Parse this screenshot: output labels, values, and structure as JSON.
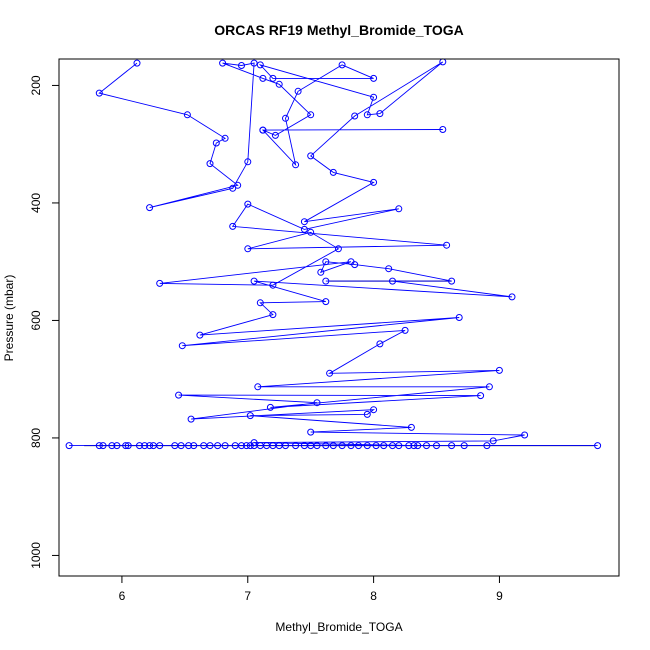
{
  "chart_data": {
    "type": "line",
    "title": "ORCAS RF19 Methyl_Bromide_TOGA",
    "xlabel": "Methyl_Bromide_TOGA",
    "ylabel": "Pressure (mbar)",
    "xlim": [
      5.5,
      9.95
    ],
    "ylim": [
      1035,
      155
    ],
    "y_reversed": true,
    "x_ticks": [
      6,
      7,
      8,
      9
    ],
    "y_ticks": [
      200,
      400,
      600,
      800,
      1000
    ],
    "grid": false,
    "legend": "none",
    "colors": {
      "series": "#0000ff",
      "reference": "#000000"
    },
    "series": [
      {
        "points": [
          [
            6.12,
            162
          ],
          [
            5.82,
            213
          ],
          [
            6.52,
            250
          ],
          [
            6.82,
            290
          ],
          [
            6.75,
            298
          ],
          [
            6.7,
            333
          ],
          [
            6.92,
            370
          ],
          [
            6.22,
            408
          ],
          [
            6.88,
            375
          ],
          [
            7.0,
            330
          ],
          [
            7.05,
            162
          ],
          [
            6.95,
            166
          ],
          [
            6.8,
            162
          ],
          [
            7.12,
            188
          ],
          [
            7.25,
            198
          ],
          [
            7.5,
            250
          ],
          [
            7.22,
            285
          ],
          [
            7.12,
            276
          ],
          [
            8.55,
            275
          ],
          [
            7.12,
            276
          ],
          [
            7.38,
            335
          ],
          [
            7.3,
            256
          ],
          [
            7.4,
            210
          ],
          [
            7.75,
            165
          ],
          [
            8.0,
            188
          ],
          [
            7.2,
            188
          ],
          [
            7.1,
            165
          ],
          [
            8.0,
            220
          ],
          [
            7.95,
            250
          ],
          [
            8.05,
            248
          ],
          [
            8.55,
            160
          ],
          [
            7.85,
            252
          ],
          [
            7.5,
            320
          ],
          [
            7.68,
            348
          ],
          [
            8.0,
            365
          ],
          [
            7.45,
            432
          ],
          [
            8.2,
            410
          ],
          [
            7.45,
            445
          ],
          [
            7.0,
            402
          ],
          [
            6.88,
            440
          ],
          [
            8.58,
            472
          ],
          [
            7.0,
            478
          ],
          [
            7.5,
            450
          ],
          [
            7.72,
            478
          ],
          [
            7.2,
            540
          ],
          [
            6.3,
            537
          ],
          [
            7.82,
            500
          ],
          [
            7.58,
            518
          ],
          [
            7.62,
            500
          ],
          [
            7.85,
            505
          ],
          [
            8.12,
            512
          ],
          [
            8.62,
            533
          ],
          [
            7.62,
            533
          ],
          [
            8.15,
            533
          ],
          [
            9.1,
            560
          ],
          [
            7.05,
            533
          ],
          [
            7.62,
            568
          ],
          [
            7.1,
            570
          ],
          [
            7.2,
            590
          ],
          [
            6.62,
            625
          ],
          [
            8.68,
            595
          ],
          [
            6.48,
            643
          ],
          [
            8.25,
            617
          ],
          [
            8.05,
            640
          ],
          [
            7.65,
            690
          ],
          [
            9.0,
            685
          ],
          [
            7.08,
            713
          ],
          [
            8.92,
            713
          ],
          [
            7.18,
            748
          ],
          [
            8.85,
            728
          ],
          [
            6.45,
            727
          ],
          [
            7.55,
            740
          ],
          [
            6.55,
            768
          ],
          [
            8.0,
            752
          ],
          [
            7.95,
            760
          ],
          [
            7.02,
            762
          ],
          [
            8.3,
            782
          ],
          [
            7.5,
            790
          ],
          [
            9.2,
            795
          ],
          [
            8.95,
            805
          ],
          [
            7.05,
            808
          ],
          [
            8.32,
            813
          ]
        ]
      },
      {
        "points": [
          [
            5.58,
            813
          ],
          [
            5.82,
            813
          ],
          [
            5.85,
            813
          ],
          [
            5.92,
            813
          ],
          [
            5.96,
            813
          ],
          [
            6.03,
            813
          ],
          [
            6.05,
            813
          ],
          [
            6.14,
            813
          ],
          [
            6.18,
            813
          ],
          [
            6.22,
            813
          ],
          [
            6.25,
            813
          ],
          [
            6.3,
            813
          ],
          [
            6.42,
            813
          ],
          [
            6.47,
            813
          ],
          [
            6.53,
            813
          ],
          [
            6.57,
            813
          ],
          [
            6.65,
            813
          ],
          [
            6.7,
            813
          ],
          [
            6.76,
            813
          ],
          [
            6.82,
            813
          ],
          [
            6.9,
            813
          ],
          [
            6.95,
            813
          ],
          [
            6.99,
            813
          ],
          [
            7.02,
            813
          ],
          [
            7.05,
            813
          ],
          [
            7.1,
            813
          ],
          [
            7.15,
            813
          ],
          [
            7.2,
            813
          ],
          [
            7.25,
            813
          ],
          [
            7.3,
            813
          ],
          [
            7.38,
            813
          ],
          [
            7.45,
            813
          ],
          [
            7.5,
            813
          ],
          [
            7.55,
            813
          ],
          [
            7.62,
            813
          ],
          [
            7.68,
            813
          ],
          [
            7.75,
            813
          ],
          [
            7.82,
            813
          ],
          [
            7.88,
            813
          ],
          [
            7.95,
            813
          ],
          [
            8.02,
            813
          ],
          [
            8.08,
            813
          ],
          [
            8.15,
            813
          ],
          [
            8.2,
            813
          ],
          [
            8.28,
            813
          ],
          [
            8.35,
            813
          ],
          [
            8.42,
            813
          ],
          [
            8.5,
            813
          ],
          [
            8.62,
            813
          ],
          [
            8.72,
            813
          ],
          [
            8.9,
            813
          ],
          [
            9.78,
            813
          ]
        ]
      }
    ],
    "reference_lines": [
      {
        "x1": 5.7,
        "x2": 9.75,
        "y": 813
      },
      {
        "x1": 7.65,
        "x2": 8.62,
        "y": 533
      }
    ]
  }
}
